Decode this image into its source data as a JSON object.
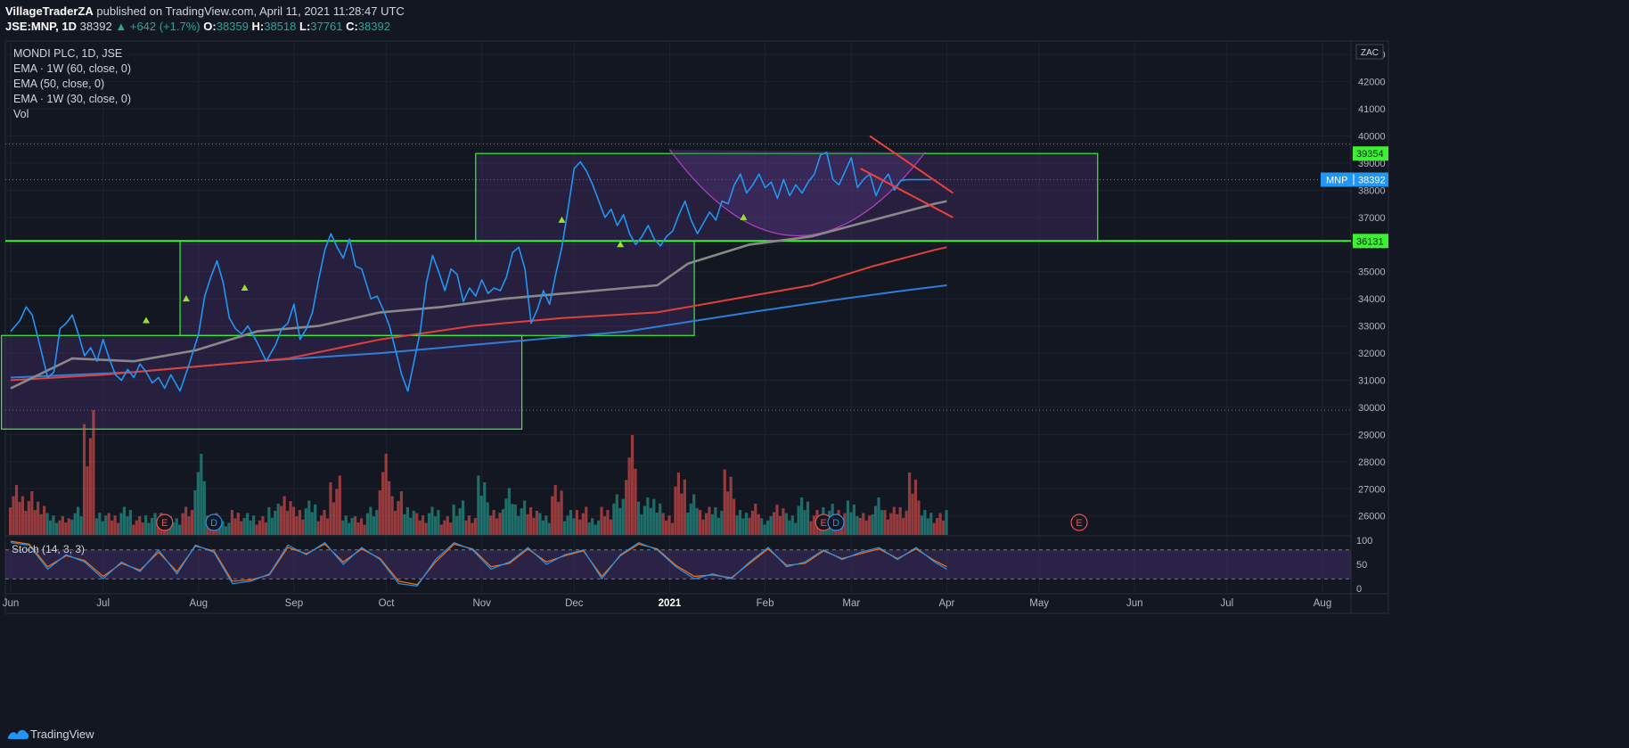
{
  "header": {
    "publisher": "VillageTraderZA",
    "published_text": "published on TradingView.com, April 11, 2021 11:28:47 UTC",
    "symbol_line": "JSE:MNP, 1D",
    "last": "38392",
    "change": "▲ +642 (+1.7%)",
    "o_label": "O:",
    "o": "38359",
    "h_label": "H:",
    "h": "38518",
    "l_label": "L:",
    "l": "37761",
    "c_label": "C:",
    "c": "38392"
  },
  "legend": {
    "title": "MONDI PLC, 1D, JSE",
    "items": [
      "EMA · 1W (60, close, 0)",
      "EMA (50, close, 0)",
      "EMA · 1W (30, close, 0)",
      "Vol"
    ]
  },
  "currency": "ZAC",
  "stoch_label": "Stoch (14, 3, 3)",
  "footer": {
    "brand": "TradingView"
  },
  "colors": {
    "background": "#131722",
    "price": "#2196f3",
    "ema_60w": "#2f7dd8",
    "ema_50": "#888888",
    "ema_30w": "#e0403c",
    "vol_up": "#26a69a",
    "vol_down": "#ef5350",
    "box_border": "#3cf032",
    "box_fill": "#5a3a8a",
    "trend_red": "#f23d3d",
    "stoch_k": "#2196f3",
    "stoch_d": "#ff6d00"
  },
  "chart_data": {
    "type": "line",
    "title": "MONDI PLC, 1D, JSE",
    "y_axis": {
      "min": 25300,
      "max": 43500,
      "ticks": [
        26000,
        27000,
        28000,
        29000,
        30000,
        31000,
        32000,
        33000,
        34000,
        35000,
        36000,
        37000,
        38000,
        39000,
        40000,
        41000,
        42000,
        43000
      ]
    },
    "x_axis": {
      "labels": [
        "Jun",
        "Jul",
        "Aug",
        "Sep",
        "Oct",
        "Nov",
        "Dec",
        "2021",
        "Feb",
        "Mar",
        "Apr",
        "May",
        "Jun",
        "Jul",
        "Aug"
      ],
      "label_days": [
        0,
        30,
        61,
        92,
        122,
        153,
        183,
        214,
        245,
        273,
        304,
        334,
        365,
        395,
        426
      ]
    },
    "price_labels": [
      {
        "value": 39354,
        "text": "39354",
        "kind": "level"
      },
      {
        "value": 38392,
        "text": "38392",
        "name": "MNP",
        "kind": "last"
      },
      {
        "value": 36131,
        "text": "36131",
        "kind": "level"
      }
    ],
    "dotted_levels": [
      39700,
      38392,
      29900
    ],
    "horizontal_levels": [
      36131
    ],
    "rectangles": [
      {
        "x0": -3,
        "x1": 166,
        "y0": 29200,
        "y1": 32650
      },
      {
        "x0": 55,
        "x1": 222,
        "y0": 32650,
        "y1": 36131
      },
      {
        "x0": 151,
        "x1": 353,
        "y0": 36131,
        "y1": 39354
      }
    ],
    "series": [
      {
        "name": "Price",
        "color": "#2196f3",
        "x": [
          0,
          3,
          5,
          7,
          9,
          12,
          14,
          16,
          18,
          20,
          22,
          24,
          26,
          28,
          30,
          32,
          34,
          36,
          38,
          40,
          42,
          44,
          46,
          48,
          50,
          52,
          55,
          58,
          61,
          63,
          65,
          67,
          69,
          71,
          73,
          75,
          77,
          80,
          83,
          86,
          88,
          90,
          92,
          94,
          96,
          98,
          100,
          102,
          104,
          106,
          108,
          110,
          112,
          114,
          117,
          119,
          121,
          123,
          125,
          127,
          129,
          131,
          133,
          135,
          137,
          139,
          141,
          143,
          145,
          147,
          149,
          151,
          153,
          155,
          157,
          159,
          161,
          163,
          165,
          167,
          169,
          171,
          173,
          175,
          177,
          179,
          181,
          183,
          185,
          187,
          189,
          191,
          193,
          195,
          197,
          199,
          201,
          203,
          205,
          207,
          209,
          211,
          213,
          215,
          217,
          219,
          221,
          223,
          225,
          227,
          229,
          231,
          233,
          235,
          237,
          239,
          241,
          243,
          245,
          247,
          249,
          251,
          253,
          255,
          257,
          259,
          261,
          263,
          265,
          267,
          269,
          271,
          273,
          275,
          277,
          279,
          281,
          283,
          285,
          287,
          289,
          291,
          293,
          295,
          297,
          299,
          301,
          302,
          304
        ],
        "y": [
          32800,
          33200,
          33700,
          33400,
          32500,
          31100,
          31300,
          32900,
          33100,
          33400,
          32700,
          31900,
          32200,
          31700,
          32500,
          31800,
          31200,
          31000,
          31400,
          31100,
          31600,
          31300,
          30900,
          31100,
          30700,
          31200,
          30600,
          31600,
          32700,
          34100,
          34800,
          35400,
          34600,
          33300,
          32900,
          32700,
          33000,
          32400,
          31700,
          32300,
          32900,
          33100,
          33800,
          32500,
          32900,
          33500,
          34700,
          35800,
          36400,
          35900,
          35500,
          36200,
          35200,
          35100,
          34000,
          34100,
          33600,
          33000,
          32100,
          31200,
          30600,
          31700,
          32800,
          34600,
          35600,
          35000,
          34300,
          35100,
          34900,
          33900,
          34400,
          34100,
          34700,
          34200,
          34400,
          34300,
          34800,
          35700,
          35900,
          35100,
          33100,
          33600,
          34300,
          33800,
          34900,
          35900,
          37300,
          38800,
          39050,
          38700,
          38200,
          37600,
          37000,
          37300,
          36700,
          37100,
          36400,
          36000,
          36300,
          36700,
          36200,
          35950,
          36300,
          36500,
          37100,
          37600,
          36900,
          36400,
          36800,
          37200,
          36900,
          37600,
          37500,
          38200,
          38600,
          37900,
          38200,
          38600,
          38100,
          38300,
          37700,
          38400,
          37800,
          38200,
          37900,
          38300,
          38600,
          39300,
          39400,
          38400,
          38200,
          38700,
          39200,
          38100,
          38400,
          38600,
          37800,
          38300,
          38600,
          38000,
          38350,
          38392,
          38392,
          38392,
          38392,
          38392,
          38392,
          38392,
          38392
        ]
      },
      {
        "name": "EMA 50",
        "color": "#888888",
        "x": [
          0,
          20,
          40,
          60,
          80,
          100,
          120,
          140,
          160,
          180,
          200,
          210,
          220,
          240,
          260,
          280,
          300,
          304
        ],
        "y": [
          30700,
          31800,
          31700,
          32100,
          32800,
          33000,
          33500,
          33700,
          34000,
          34200,
          34400,
          34500,
          35300,
          36000,
          36300,
          36900,
          37500,
          37600
        ]
      },
      {
        "name": "EMA · 1W (30)",
        "color": "#e0403c",
        "x": [
          0,
          30,
          60,
          90,
          120,
          150,
          180,
          210,
          240,
          260,
          280,
          290,
          300,
          304
        ],
        "y": [
          31000,
          31200,
          31500,
          31800,
          32500,
          33000,
          33300,
          33500,
          34100,
          34500,
          35200,
          35500,
          35800,
          35900
        ]
      },
      {
        "name": "EMA · 1W (60)",
        "color": "#2f7dd8",
        "x": [
          0,
          40,
          80,
          120,
          160,
          200,
          240,
          270,
          290,
          304
        ],
        "y": [
          31100,
          31300,
          31700,
          32000,
          32400,
          32800,
          33500,
          34000,
          34300,
          34500
        ]
      }
    ],
    "volume": {
      "x": [
        0,
        4,
        8,
        12,
        16,
        20,
        24,
        28,
        32,
        36,
        40,
        44,
        48,
        52,
        56,
        60,
        64,
        68,
        72,
        76,
        80,
        84,
        88,
        92,
        96,
        100,
        104,
        108,
        112,
        116,
        120,
        124,
        128,
        132,
        136,
        140,
        144,
        148,
        152,
        156,
        160,
        164,
        168,
        172,
        176,
        180,
        184,
        188,
        192,
        196,
        200,
        204,
        208,
        212,
        216,
        220,
        224,
        228,
        232,
        236,
        240,
        244,
        248,
        252,
        256,
        260,
        264,
        268,
        272,
        276,
        280,
        284,
        288,
        292,
        296,
        300,
        304
      ],
      "values": [
        1.6,
        1.4,
        1.2,
        0.7,
        0.6,
        0.9,
        4.0,
        0.8,
        0.7,
        0.9,
        0.6,
        0.7,
        0.8,
        0.6,
        0.9,
        2.6,
        0.7,
        0.5,
        0.8,
        0.7,
        0.6,
        1.0,
        1.4,
        0.9,
        1.1,
        0.8,
        1.9,
        0.7,
        0.6,
        0.9,
        2.6,
        1.4,
        1.0,
        0.7,
        0.9,
        0.6,
        1.1,
        0.7,
        1.9,
        0.8,
        1.5,
        1.1,
        1.0,
        0.7,
        1.6,
        0.8,
        0.9,
        0.6,
        0.9,
        1.3,
        3.2,
        1.2,
        1.3,
        0.7,
        2.0,
        1.3,
        0.9,
        1.0,
        2.1,
        0.8,
        1.0,
        0.6,
        1.1,
        0.7,
        1.2,
        0.8,
        1.0,
        0.9,
        1.1,
        0.7,
        1.2,
        0.9,
        1.0,
        2.0,
        0.8,
        0.7,
        0.9
      ],
      "up": [
        false,
        false,
        false,
        true,
        false,
        true,
        false,
        true,
        false,
        true,
        false,
        true,
        false,
        true,
        false,
        true,
        false,
        true,
        false,
        true,
        false,
        true,
        false,
        false,
        true,
        false,
        false,
        true,
        false,
        true,
        false,
        false,
        true,
        false,
        true,
        false,
        true,
        false,
        true,
        false,
        true,
        true,
        false,
        true,
        false,
        true,
        false,
        true,
        false,
        true,
        false,
        true,
        true,
        false,
        false,
        true,
        false,
        true,
        false,
        true,
        false,
        true,
        false,
        true,
        true,
        false,
        true,
        false,
        true,
        false,
        true,
        false,
        false,
        false,
        true,
        false,
        true
      ]
    },
    "stochastic": {
      "y_ticks": [
        0,
        50,
        100
      ],
      "bands": [
        20,
        80
      ],
      "x": [
        0,
        6,
        12,
        18,
        24,
        30,
        36,
        42,
        48,
        54,
        60,
        66,
        72,
        78,
        84,
        90,
        96,
        102,
        108,
        114,
        120,
        126,
        132,
        138,
        144,
        150,
        156,
        162,
        168,
        174,
        180,
        186,
        192,
        198,
        204,
        210,
        216,
        222,
        228,
        234,
        240,
        246,
        252,
        258,
        264,
        270,
        276,
        282,
        288,
        294,
        300,
        304
      ],
      "k": [
        95,
        90,
        40,
        70,
        55,
        20,
        55,
        35,
        80,
        30,
        90,
        75,
        10,
        15,
        30,
        90,
        70,
        95,
        50,
        85,
        60,
        10,
        5,
        60,
        95,
        80,
        40,
        55,
        85,
        50,
        70,
        80,
        20,
        70,
        95,
        80,
        45,
        20,
        30,
        20,
        55,
        85,
        45,
        55,
        80,
        60,
        75,
        85,
        60,
        85,
        55,
        40
      ],
      "d": [
        98,
        92,
        45,
        68,
        58,
        25,
        52,
        38,
        75,
        35,
        88,
        78,
        15,
        18,
        28,
        85,
        72,
        92,
        55,
        82,
        62,
        15,
        8,
        55,
        92,
        82,
        45,
        52,
        82,
        55,
        68,
        78,
        25,
        68,
        92,
        82,
        48,
        25,
        28,
        22,
        52,
        82,
        48,
        52,
        78,
        62,
        72,
        82,
        62,
        82,
        58,
        45
      ]
    },
    "markers": {
      "up_triangles": [
        {
          "x": 44,
          "y": 33200
        },
        {
          "x": 57,
          "y": 34000
        },
        {
          "x": 76,
          "y": 34400
        },
        {
          "x": 179,
          "y": 36900
        },
        {
          "x": 198,
          "y": 36000
        },
        {
          "x": 238,
          "y": 37000
        }
      ],
      "earnings": [
        {
          "x": 50,
          "text": "E"
        },
        {
          "x": 66,
          "text": "D"
        },
        {
          "x": 264,
          "text": "E"
        },
        {
          "x": 268,
          "text": "D"
        },
        {
          "x": 347,
          "text": "E"
        }
      ]
    }
  }
}
